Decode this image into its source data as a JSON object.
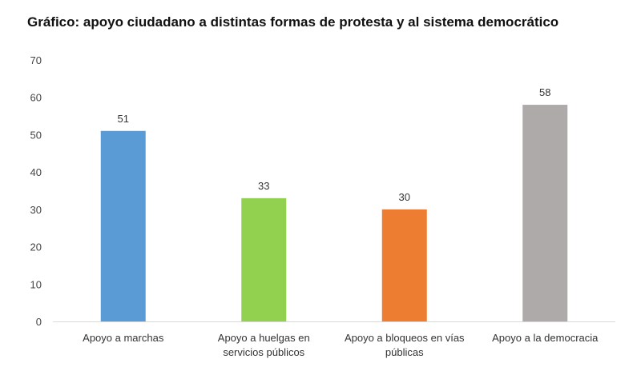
{
  "chart_data": {
    "type": "bar",
    "title": "Gráfico: apoyo ciudadano a distintas formas de protesta y al sistema democrático",
    "categories": [
      [
        "Apoyo a marchas"
      ],
      [
        "Apoyo a huelgas en",
        "servicios públicos"
      ],
      [
        "Apoyo a bloqueos en vías",
        "públicas"
      ],
      [
        "Apoyo a la democracia"
      ]
    ],
    "values": [
      51,
      33,
      30,
      58
    ],
    "data_labels": [
      "51",
      "33",
      "30",
      "58"
    ],
    "bar_colors": [
      "#5b9bd5",
      "#92d050",
      "#ed7d31",
      "#aeaaaa"
    ],
    "ylim": [
      0,
      70
    ],
    "yticks": [
      0,
      10,
      20,
      30,
      40,
      50,
      60,
      70
    ],
    "grid": false,
    "xlabel": "",
    "ylabel": ""
  }
}
